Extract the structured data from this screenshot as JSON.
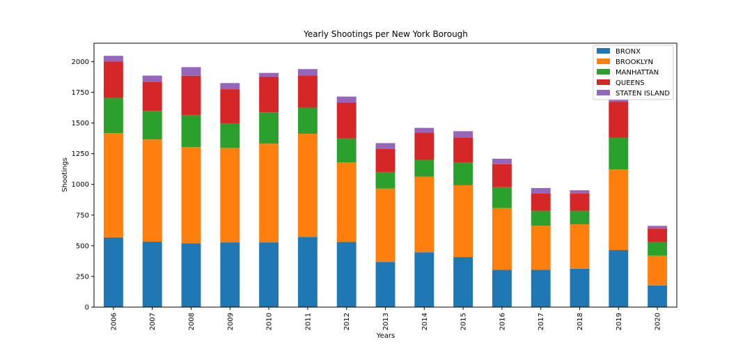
{
  "chart_data": {
    "type": "bar",
    "stacked": true,
    "title": "Yearly Shootings per New York Borough",
    "xlabel": "Years",
    "ylabel": "Shootings",
    "ylim": [
      0,
      2150
    ],
    "yticks": [
      0,
      250,
      500,
      750,
      1000,
      1250,
      1500,
      1750,
      2000
    ],
    "grid": false,
    "legend_position": "top-right",
    "categories": [
      "2006",
      "2007",
      "2008",
      "2009",
      "2010",
      "2011",
      "2012",
      "2013",
      "2014",
      "2015",
      "2016",
      "2017",
      "2018",
      "2019",
      "2020"
    ],
    "series": [
      {
        "name": "BRONX",
        "color": "#1f77b4",
        "values": [
          568,
          533,
          520,
          527,
          527,
          572,
          532,
          368,
          447,
          408,
          305,
          305,
          313,
          465,
          177
        ]
      },
      {
        "name": "BROOKLYN",
        "color": "#ff7f0e",
        "values": [
          849,
          833,
          783,
          770,
          805,
          840,
          648,
          598,
          615,
          585,
          502,
          358,
          362,
          658,
          243
        ]
      },
      {
        "name": "MANHATTAN",
        "color": "#2ca02c",
        "values": [
          288,
          233,
          262,
          200,
          255,
          213,
          195,
          135,
          138,
          185,
          170,
          122,
          110,
          258,
          110
        ]
      },
      {
        "name": "QUEENS",
        "color": "#d62728",
        "values": [
          295,
          237,
          320,
          278,
          288,
          262,
          290,
          187,
          222,
          205,
          187,
          140,
          140,
          292,
          110
        ]
      },
      {
        "name": "STATEN ISLAND",
        "color": "#9467bd",
        "values": [
          47,
          50,
          70,
          50,
          33,
          52,
          50,
          48,
          38,
          50,
          45,
          45,
          27,
          48,
          22
        ]
      }
    ]
  }
}
